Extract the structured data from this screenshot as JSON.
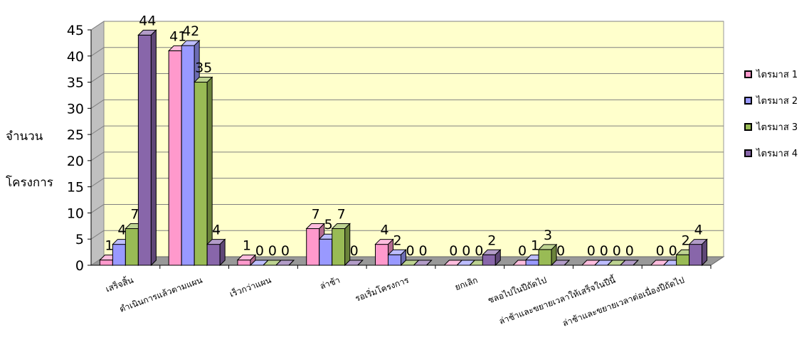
{
  "chart_data": {
    "type": "bar",
    "ylabel": [
      "จำนวน",
      "โครงการ"
    ],
    "ylim": [
      0,
      45
    ],
    "yticks": [
      0,
      5,
      10,
      15,
      20,
      25,
      30,
      35,
      40,
      45
    ],
    "grid": true,
    "legend_position": "right",
    "categories": [
      "เสร็จสิ้น",
      "ดำเนินการแล้วตามแผน",
      "เร็วกว่าแผน",
      "ล่าช้า",
      "รอเริ่มโครงการ",
      "ยกเลิก",
      "ชลอไปในปีถัดไป",
      "ล่าช้าและขยายเวลาให้เสร็จในปีนี้",
      "ล่าช้าและขยายเวลาต่อเนื่องปีถัดไป"
    ],
    "series": [
      {
        "name": "ไตรมาส 1",
        "color": "#ff99cc",
        "values": [
          1,
          41,
          1,
          7,
          4,
          0,
          0,
          0,
          0
        ]
      },
      {
        "name": "ไตรมาส 2",
        "color": "#9999ff",
        "values": [
          4,
          42,
          0,
          5,
          2,
          0,
          1,
          0,
          0
        ]
      },
      {
        "name": "ไตรมาส 3",
        "color": "#99bb55",
        "values": [
          7,
          35,
          0,
          7,
          0,
          0,
          3,
          0,
          2
        ]
      },
      {
        "name": "ไตรมาส 4",
        "color": "#8866aa",
        "values": [
          44,
          4,
          0,
          0,
          0,
          2,
          0,
          0,
          4
        ]
      }
    ]
  }
}
